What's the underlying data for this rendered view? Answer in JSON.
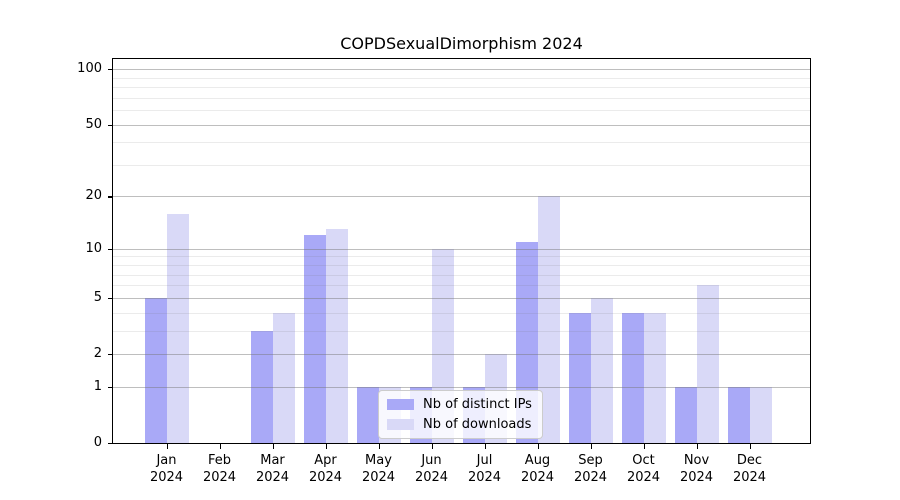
{
  "chart_data": {
    "type": "bar",
    "title": "COPDSexualDimorphism 2024",
    "categories": [
      "Jan",
      "Feb",
      "Mar",
      "Apr",
      "May",
      "Jun",
      "Jul",
      "Aug",
      "Sep",
      "Oct",
      "Nov",
      "Dec"
    ],
    "x_year_label": "2024",
    "series": [
      {
        "name": "Nb of distinct IPs",
        "color": "#a9a9f7",
        "values": [
          5,
          0,
          3,
          12,
          1,
          1,
          1,
          11,
          4,
          4,
          1,
          1
        ]
      },
      {
        "name": "Nb of downloads",
        "color": "#d9d9f7",
        "values": [
          16,
          0,
          4,
          13,
          1,
          10,
          2,
          20,
          5,
          4,
          6,
          1
        ]
      }
    ],
    "xlabel": "",
    "ylabel": "",
    "y_scale": "log1p",
    "y_ticks": [
      0,
      1,
      2,
      5,
      10,
      20,
      50,
      100
    ],
    "y_minor_gridlines": [
      3,
      4,
      6,
      7,
      8,
      9,
      30,
      40,
      60,
      70,
      80,
      90
    ],
    "ylim": [
      0,
      115
    ],
    "grid": true,
    "legend_position": "lower center",
    "axis_color": "#000000"
  }
}
